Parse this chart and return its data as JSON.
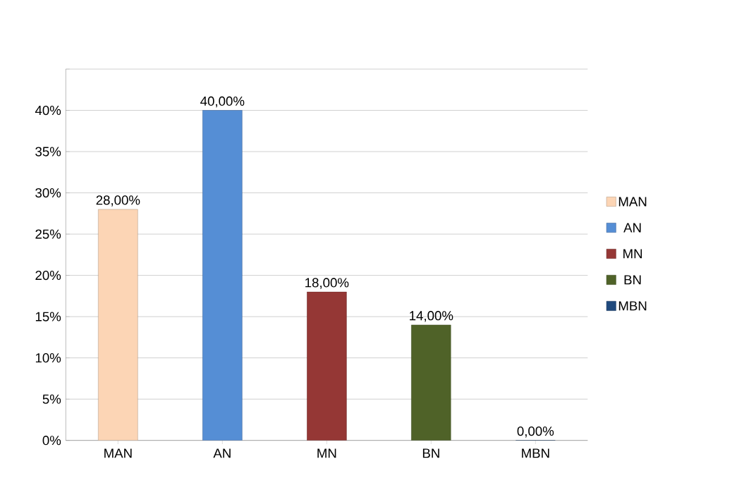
{
  "chart_data": {
    "type": "bar",
    "categories": [
      "MAN",
      "AN",
      "MN",
      "BN",
      "MBN"
    ],
    "series": [
      {
        "name": "MAN",
        "color": "#fcd5b5",
        "values": [
          28,
          null,
          null,
          null,
          null
        ],
        "value_labels": [
          "28,00%",
          null,
          null,
          null,
          null
        ]
      },
      {
        "name": "AN",
        "color": "#558ed5",
        "values": [
          null,
          40,
          null,
          null,
          null
        ],
        "value_labels": [
          null,
          "40,00%",
          null,
          null,
          null
        ]
      },
      {
        "name": "MN",
        "color": "#953735",
        "values": [
          null,
          null,
          18,
          null,
          null
        ],
        "value_labels": [
          null,
          null,
          "18,00%",
          null,
          null
        ]
      },
      {
        "name": "BN",
        "color": "#4f6228",
        "values": [
          null,
          null,
          null,
          14,
          null
        ],
        "value_labels": [
          null,
          null,
          null,
          "14,00%",
          null
        ]
      },
      {
        "name": "MBN",
        "color": "#1f497d",
        "values": [
          null,
          null,
          null,
          null,
          0
        ],
        "value_labels": [
          null,
          null,
          null,
          null,
          "0,00%"
        ]
      }
    ],
    "ylim": [
      0,
      45
    ],
    "yticks": [
      {
        "value": 0,
        "label": "0%"
      },
      {
        "value": 5,
        "label": "5%"
      },
      {
        "value": 10,
        "label": "10%"
      },
      {
        "value": 15,
        "label": "15%"
      },
      {
        "value": 20,
        "label": "20%"
      },
      {
        "value": 25,
        "label": "25%"
      },
      {
        "value": 30,
        "label": "30%"
      },
      {
        "value": 35,
        "label": "35%"
      },
      {
        "value": 40,
        "label": "40%"
      },
      {
        "value": 45,
        "label": null
      }
    ],
    "grid": "y",
    "legend": "right"
  }
}
